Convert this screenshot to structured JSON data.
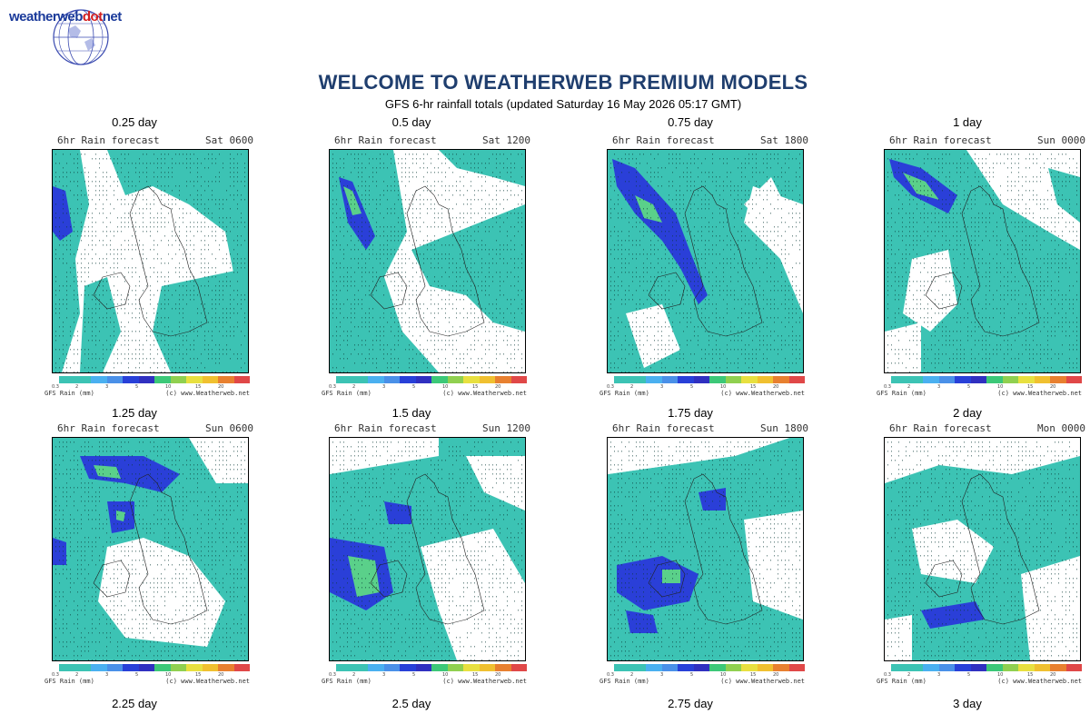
{
  "logo": {
    "part1": "weatherweb",
    "part2": "dot",
    "part3": "net"
  },
  "page": {
    "title": "WELCOME TO WEATHERWEB PREMIUM MODELS",
    "subtitle": "GFS 6-hr rainfall totals (updated Saturday 16 May 2026 05:17 GMT)"
  },
  "leads": [
    "0.25 day",
    "0.5 day",
    "0.75 day",
    "1 day",
    "1.25 day",
    "1.5 day",
    "1.75 day",
    "2 day",
    "2.25 day",
    "2.5 day",
    "2.75 day",
    "3 day"
  ],
  "panels": [
    {
      "label": "6hr Rain forecast",
      "time": "Sat 0600"
    },
    {
      "label": "6hr Rain forecast",
      "time": "Sat 1200"
    },
    {
      "label": "6hr Rain forecast",
      "time": "Sat 1800"
    },
    {
      "label": "6hr Rain forecast",
      "time": "Sun 0000"
    },
    {
      "label": "6hr Rain forecast",
      "time": "Sun 0600"
    },
    {
      "label": "6hr Rain forecast",
      "time": "Sun 1200"
    },
    {
      "label": "6hr Rain forecast",
      "time": "Sun 1800"
    },
    {
      "label": "6hr Rain forecast",
      "time": "Mon 0000"
    }
  ],
  "legend": {
    "ticks": [
      "0.3",
      "2",
      "3",
      "5",
      "10",
      "15",
      "20"
    ],
    "units": "GFS Rain (mm)",
    "credit": "(c) www.Weatherweb.net",
    "colors": [
      "#3cc3b4",
      "#3cc3b4",
      "#4ab0f0",
      "#4a90e8",
      "#2840d8",
      "#3030c0",
      "#3cc878",
      "#90d050",
      "#e8e040",
      "#f0c030",
      "#e88030",
      "#e04848"
    ]
  },
  "colors": {
    "title": "#1f3e6e",
    "rain_light": "#3cc3b4",
    "rain_mod": "#4f86ea",
    "rain_heavy": "#2a3fd8",
    "rain_green": "#5ad08a"
  }
}
